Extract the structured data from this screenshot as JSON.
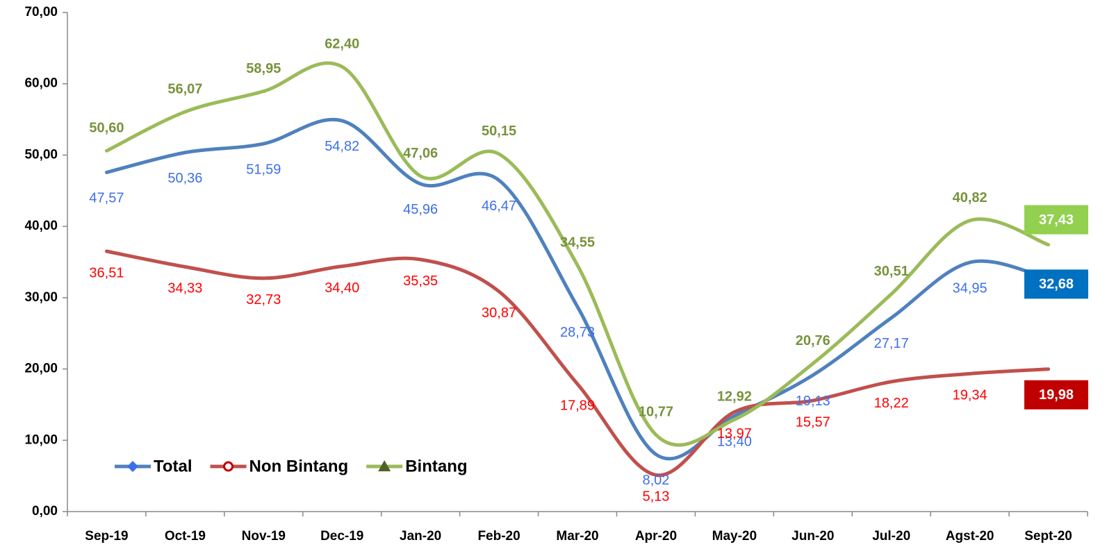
{
  "chart_data": {
    "type": "line",
    "categories": [
      "Sep-19",
      "Oct-19",
      "Nov-19",
      "Dec-19",
      "Jan-20",
      "Feb-20",
      "Mar-20",
      "Apr-20",
      "May-20",
      "Jun-20",
      "Jul-20",
      "Agst-20",
      "Sept-20"
    ],
    "ylim": [
      0,
      70
    ],
    "yticks": [
      {
        "value": 0,
        "label": "0,00"
      },
      {
        "value": 10,
        "label": "10,00"
      },
      {
        "value": 20,
        "label": "20,00"
      },
      {
        "value": 30,
        "label": "30,00"
      },
      {
        "value": 40,
        "label": "40,00"
      },
      {
        "value": 50,
        "label": "50,00"
      },
      {
        "value": 60,
        "label": "60,00"
      },
      {
        "value": 70,
        "label": "70,00"
      }
    ],
    "legend": "lower left",
    "series": [
      {
        "name": "Total",
        "color": "#4f81bd",
        "label_color": "#3d6fe8",
        "highlight_color": "#0070c0",
        "marker": "diamond",
        "values": [
          47.57,
          50.36,
          51.59,
          54.82,
          45.96,
          46.47,
          28.73,
          8.02,
          13.4,
          19.13,
          27.17,
          34.95,
          32.68
        ],
        "value_labels": [
          "47,57",
          "50,36",
          "51,59",
          "54,82",
          "45,96",
          "46,47",
          "28,73",
          "8,02",
          "13,40",
          "19,13",
          "27,17",
          "34,95",
          "32,68"
        ]
      },
      {
        "name": "Non Bintang",
        "color": "#c0504d",
        "label_color": "#ff0000",
        "highlight_color": "#c00000",
        "marker": "circle",
        "values": [
          36.51,
          34.33,
          32.73,
          34.4,
          35.35,
          30.87,
          17.89,
          5.13,
          13.97,
          15.57,
          18.22,
          19.34,
          19.98
        ],
        "value_labels": [
          "36,51",
          "34,33",
          "32,73",
          "34,40",
          "35,35",
          "30,87",
          "17,89",
          "5,13",
          "13,97",
          "15,57",
          "18,22",
          "19,34",
          "19,98"
        ]
      },
      {
        "name": "Bintang",
        "color": "#9bbb59",
        "label_color": "#77933c",
        "highlight_color": "#92d050",
        "marker": "triangle",
        "values": [
          50.6,
          56.07,
          58.95,
          62.4,
          47.06,
          50.15,
          34.55,
          10.77,
          12.92,
          20.76,
          30.51,
          40.82,
          37.43
        ],
        "value_labels": [
          "50,60",
          "56,07",
          "58,95",
          "62,40",
          "47,06",
          "50,15",
          "34,55",
          "10,77",
          "12,92",
          "20,76",
          "30,51",
          "40,82",
          "37,43"
        ]
      }
    ]
  }
}
